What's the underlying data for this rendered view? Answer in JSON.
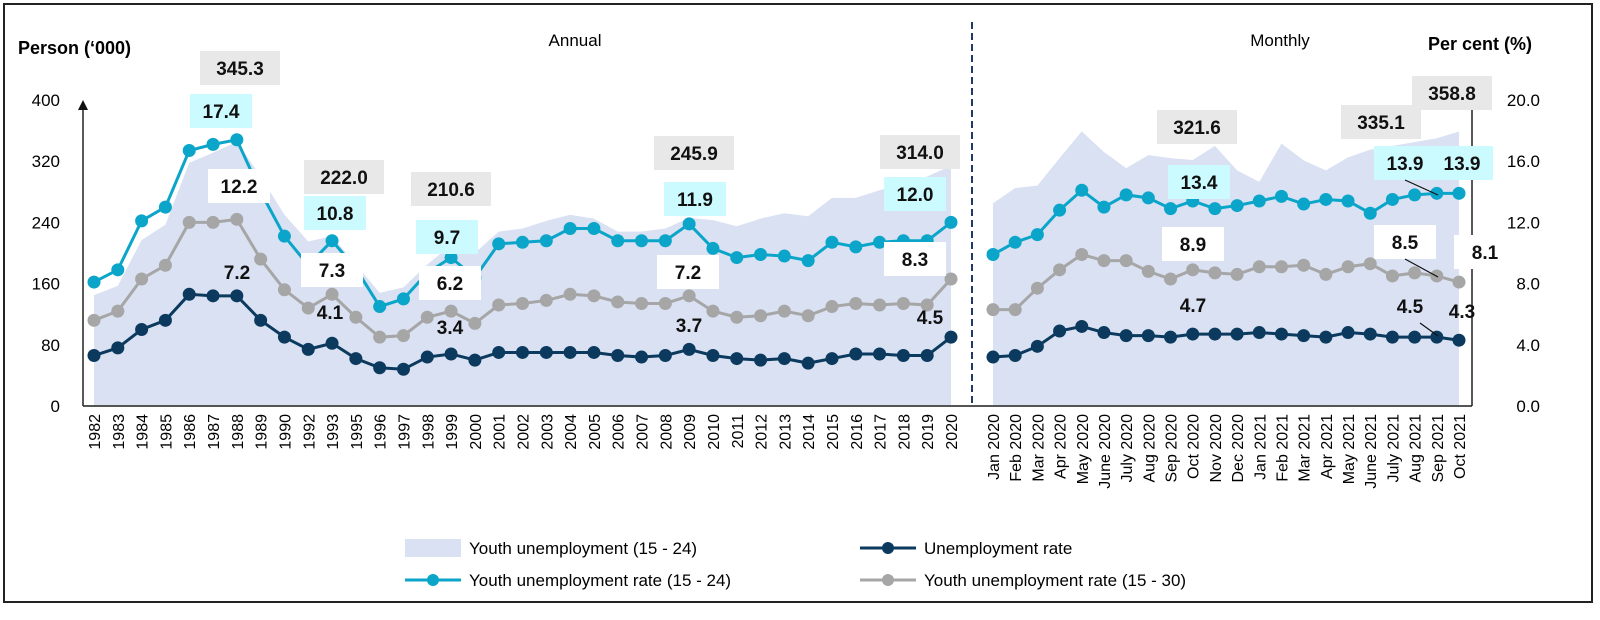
{
  "chart_data": {
    "type": "line",
    "panels": [
      "Annual",
      "Monthly"
    ],
    "left_axis": {
      "label": "Person  (‘000)",
      "ticks": [
        "0",
        "80",
        "160",
        "240",
        "320",
        "400"
      ],
      "range": [
        0,
        400
      ]
    },
    "right_axis": {
      "label": "Per cent (%)",
      "ticks": [
        "0.0",
        "4.0",
        "8.0",
        "12.0",
        "16.0",
        "20.0"
      ],
      "range": [
        0,
        20
      ]
    },
    "annual_categories": [
      "1982",
      "1983",
      "1984",
      "1985",
      "1986",
      "1987",
      "1988",
      "1989",
      "1990",
      "1992",
      "1993",
      "1995",
      "1996",
      "1997",
      "1998",
      "1999",
      "2000",
      "2001",
      "2002",
      "2003",
      "2004",
      "2005",
      "2006",
      "2007",
      "2008",
      "2009",
      "2010",
      "2011",
      "2012",
      "2013",
      "2014",
      "2015",
      "2016",
      "2017",
      "2018",
      "2019",
      "2020"
    ],
    "monthly_categories": [
      "Jan 2020",
      "Feb 2020",
      "Mar 2020",
      "Apr 2020",
      "May 2020",
      "June 2020",
      "July 2020",
      "Aug 2020",
      "Sep 2020",
      "Oct 2020",
      "Nov 2020",
      "Dec 2020",
      "Jan 2021",
      "Feb 2021",
      "Mar 2021",
      "Apr 2021",
      "May 2021",
      "June 2021",
      "July 2021",
      "Aug 2021",
      "Sep 2021",
      "Oct 2021"
    ],
    "series": [
      {
        "key": "area",
        "name": "Youth unemployment (15 - 24)",
        "type": "area",
        "axis": "left",
        "color": "#d9e1f2",
        "annual": [
          145,
          157,
          217,
          237,
          318,
          331,
          345.3,
          300,
          250,
          215,
          222.0,
          185,
          148,
          155,
          185,
          210.6,
          200,
          228,
          232,
          242,
          250,
          245,
          228,
          228,
          232,
          245.9,
          243,
          235,
          245,
          252,
          248,
          272,
          272,
          282,
          290,
          300,
          314.0
        ],
        "monthly": [
          265,
          285,
          288,
          324,
          359,
          332,
          311,
          328,
          324,
          321.6,
          340,
          308,
          293,
          343,
          321,
          308,
          325,
          335.1,
          340,
          345,
          350,
          358.8
        ]
      },
      {
        "key": "teal",
        "name": "Youth unemployment rate (15 - 24)",
        "type": "line",
        "axis": "right",
        "color": "#0aa5c9",
        "annual": [
          8.1,
          8.9,
          12.1,
          13.0,
          16.7,
          17.1,
          17.4,
          14.0,
          11.1,
          9.2,
          10.8,
          9.0,
          6.5,
          7.0,
          8.7,
          9.7,
          8.4,
          10.6,
          10.7,
          10.8,
          11.6,
          11.6,
          10.8,
          10.8,
          10.8,
          11.9,
          10.3,
          9.7,
          9.9,
          9.8,
          9.5,
          10.7,
          10.4,
          10.7,
          10.8,
          10.8,
          12.0
        ],
        "monthly": [
          9.9,
          10.7,
          11.2,
          12.8,
          14.1,
          13.0,
          13.8,
          13.6,
          12.9,
          13.4,
          12.9,
          13.1,
          13.4,
          13.7,
          13.2,
          13.5,
          13.4,
          12.6,
          13.5,
          13.8,
          13.9,
          13.9
        ]
      },
      {
        "key": "gray",
        "name": "Youth unemployment rate (15 - 30)",
        "type": "line",
        "axis": "right",
        "color": "#a6a6a6",
        "annual": [
          5.6,
          6.2,
          8.3,
          9.2,
          12.0,
          12.0,
          12.2,
          9.6,
          7.6,
          6.4,
          7.3,
          5.8,
          4.5,
          4.6,
          5.8,
          6.2,
          5.4,
          6.6,
          6.7,
          6.9,
          7.3,
          7.2,
          6.8,
          6.7,
          6.7,
          7.2,
          6.2,
          5.8,
          5.9,
          6.2,
          5.9,
          6.5,
          6.7,
          6.6,
          6.7,
          6.6,
          8.3
        ],
        "monthly": [
          6.3,
          6.3,
          7.7,
          8.9,
          9.9,
          9.5,
          9.5,
          8.8,
          8.3,
          8.9,
          8.7,
          8.6,
          9.1,
          9.1,
          9.2,
          8.6,
          9.1,
          9.3,
          8.5,
          8.7,
          8.5,
          8.1
        ]
      },
      {
        "key": "dark",
        "name": "Unemployment rate",
        "type": "line",
        "axis": "right",
        "color": "#0b3a5e",
        "annual": [
          3.3,
          3.8,
          5.0,
          5.6,
          7.3,
          7.2,
          7.2,
          5.6,
          4.5,
          3.7,
          4.1,
          3.1,
          2.5,
          2.4,
          3.2,
          3.4,
          3.0,
          3.5,
          3.5,
          3.5,
          3.5,
          3.5,
          3.3,
          3.2,
          3.3,
          3.7,
          3.3,
          3.1,
          3.0,
          3.1,
          2.8,
          3.1,
          3.4,
          3.4,
          3.3,
          3.3,
          4.5
        ],
        "monthly": [
          3.2,
          3.3,
          3.9,
          4.9,
          5.2,
          4.8,
          4.6,
          4.6,
          4.5,
          4.7,
          4.7,
          4.7,
          4.8,
          4.7,
          4.6,
          4.5,
          4.8,
          4.7,
          4.5,
          4.5,
          4.5,
          4.3
        ]
      }
    ],
    "data_labels": [
      {
        "series": "area",
        "at": "1988",
        "text": "345.3"
      },
      {
        "series": "teal",
        "at": "1988",
        "text": "17.4"
      },
      {
        "series": "gray",
        "at": "1988",
        "text": "12.2"
      },
      {
        "series": "dark",
        "at": "1988",
        "text": "7.2"
      },
      {
        "series": "area",
        "at": "1993",
        "text": "222.0"
      },
      {
        "series": "teal",
        "at": "1993",
        "text": "10.8"
      },
      {
        "series": "gray",
        "at": "1993",
        "text": "7.3"
      },
      {
        "series": "dark",
        "at": "1993",
        "text": "4.1"
      },
      {
        "series": "area",
        "at": "1999",
        "text": "210.6"
      },
      {
        "series": "teal",
        "at": "1999",
        "text": "9.7"
      },
      {
        "series": "gray",
        "at": "1999",
        "text": "6.2"
      },
      {
        "series": "dark",
        "at": "1999",
        "text": "3.4"
      },
      {
        "series": "area",
        "at": "2009",
        "text": "245.9"
      },
      {
        "series": "teal",
        "at": "2009",
        "text": "11.9"
      },
      {
        "series": "gray",
        "at": "2009",
        "text": "7.2"
      },
      {
        "series": "dark",
        "at": "2009",
        "text": "3.7"
      },
      {
        "series": "area",
        "at": "2020",
        "text": "314.0"
      },
      {
        "series": "teal",
        "at": "2020",
        "text": "12.0"
      },
      {
        "series": "gray",
        "at": "2020",
        "text": "8.3"
      },
      {
        "series": "dark",
        "at": "2020",
        "text": "4.5"
      },
      {
        "series": "area",
        "at": "Oct 2020",
        "text": "321.6"
      },
      {
        "series": "teal",
        "at": "Oct 2020",
        "text": "13.4"
      },
      {
        "series": "gray",
        "at": "Oct 2020",
        "text": "8.9"
      },
      {
        "series": "dark",
        "at": "Oct 2020",
        "text": "4.7"
      },
      {
        "series": "area",
        "at": "June 2021",
        "text": "335.1"
      },
      {
        "series": "teal",
        "at": "Sep 2021",
        "text": "13.9"
      },
      {
        "series": "teal",
        "at": "Oct 2021",
        "text": "13.9"
      },
      {
        "series": "gray",
        "at": "Sep 2021",
        "text": "8.5"
      },
      {
        "series": "gray",
        "at": "Oct 2021",
        "text": "8.1"
      },
      {
        "series": "dark",
        "at": "Sep 2021",
        "text": "4.5"
      },
      {
        "series": "dark",
        "at": "Oct 2021",
        "text": "4.3"
      },
      {
        "series": "area",
        "at": "Oct 2021",
        "text": "358.8"
      }
    ],
    "legend": {
      "placement": "bottom",
      "entries": [
        "Youth unemployment (15 - 24)",
        "Unemployment rate",
        "Youth unemployment rate (15 - 24)",
        "Youth unemployment rate (15 - 30)"
      ]
    },
    "grid": false
  }
}
